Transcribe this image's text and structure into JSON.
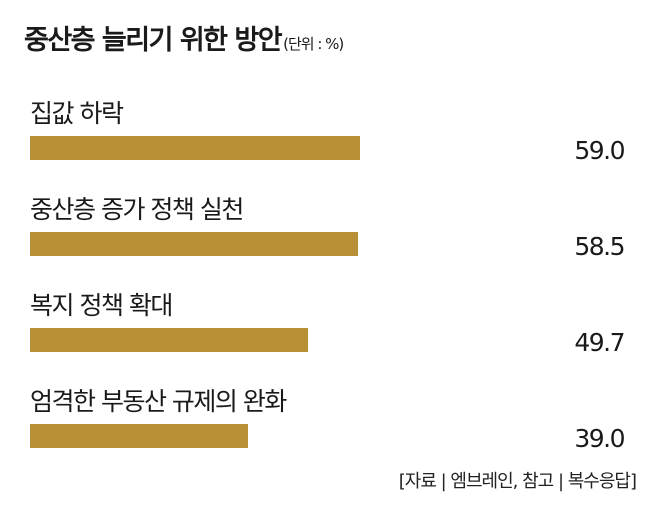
{
  "header": {
    "title": "중산층 늘리기 위한 방안",
    "unit": "(단위 : %)"
  },
  "chart_data": {
    "type": "bar",
    "orientation": "horizontal",
    "categories": [
      "집값 하락",
      "중산층 증가 정책 실천",
      "복지 정책 확대",
      "엄격한 부동산 규제의 완화"
    ],
    "values": [
      59.0,
      58.5,
      49.7,
      39.0
    ],
    "value_labels": [
      "59.0",
      "58.5",
      "49.7",
      "39.0"
    ],
    "title": "중산층 늘리기 위한 방안",
    "xlim": [
      0,
      100
    ],
    "grid": false,
    "legend": "none",
    "bar_color": "#b78f35"
  },
  "footer": {
    "source": "[자료 | 엠브레인, 참고 | 복수응답]"
  }
}
